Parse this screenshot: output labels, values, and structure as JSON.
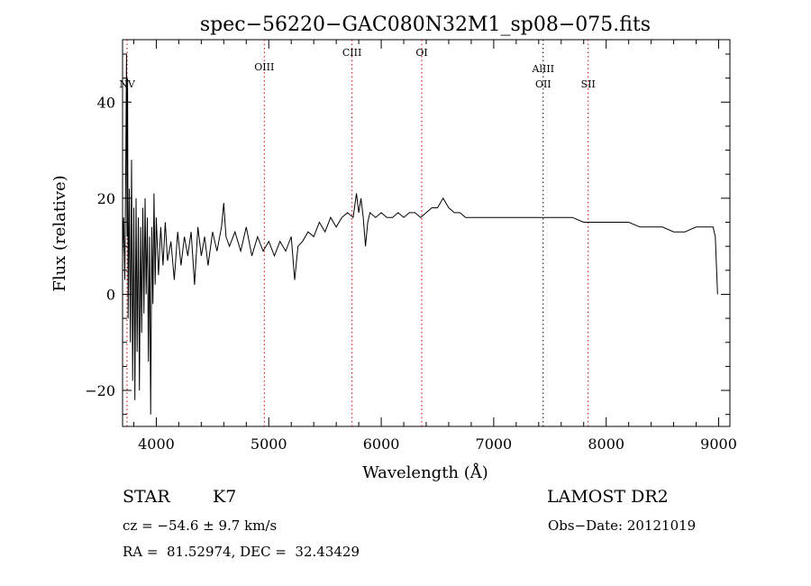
{
  "chart_data": {
    "type": "line",
    "title": "spec−56220−GAC080N32M1_sp08−075.fits",
    "xlabel": "Wavelength (Å)",
    "ylabel": "Flux (relative)",
    "xlim": [
      3700,
      9100
    ],
    "ylim": [
      -27.5,
      53
    ],
    "xticks": [
      4000,
      5000,
      6000,
      7000,
      8000,
      9000
    ],
    "yticks": [
      -20,
      0,
      20,
      40
    ],
    "series": [
      {
        "values": [
          [
            3700,
            8
          ],
          [
            3710,
            16
          ],
          [
            3720,
            3
          ],
          [
            3730,
            30
          ],
          [
            3735,
            50
          ],
          [
            3740,
            12
          ],
          [
            3745,
            45
          ],
          [
            3750,
            -5
          ],
          [
            3760,
            22
          ],
          [
            3770,
            -10
          ],
          [
            3780,
            28
          ],
          [
            3790,
            -18
          ],
          [
            3800,
            18
          ],
          [
            3810,
            -22
          ],
          [
            3820,
            20
          ],
          [
            3830,
            -12
          ],
          [
            3840,
            16
          ],
          [
            3850,
            -20
          ],
          [
            3860,
            14
          ],
          [
            3870,
            -8
          ],
          [
            3880,
            18
          ],
          [
            3890,
            -4
          ],
          [
            3900,
            20
          ],
          [
            3910,
            0
          ],
          [
            3920,
            16
          ],
          [
            3930,
            -14
          ],
          [
            3940,
            12
          ],
          [
            3950,
            -25
          ],
          [
            3960,
            14
          ],
          [
            3970,
            -2
          ],
          [
            3980,
            21
          ],
          [
            3990,
            2
          ],
          [
            4000,
            16
          ],
          [
            4020,
            4
          ],
          [
            4040,
            14
          ],
          [
            4060,
            6
          ],
          [
            4080,
            15
          ],
          [
            4100,
            7
          ],
          [
            4130,
            11
          ],
          [
            4160,
            3
          ],
          [
            4190,
            13
          ],
          [
            4220,
            6
          ],
          [
            4250,
            12
          ],
          [
            4280,
            8
          ],
          [
            4310,
            13
          ],
          [
            4340,
            2
          ],
          [
            4370,
            14
          ],
          [
            4400,
            8
          ],
          [
            4430,
            12
          ],
          [
            4460,
            6
          ],
          [
            4500,
            13
          ],
          [
            4540,
            9
          ],
          [
            4580,
            14
          ],
          [
            4600,
            19
          ],
          [
            4620,
            12
          ],
          [
            4650,
            10
          ],
          [
            4700,
            13
          ],
          [
            4750,
            9
          ],
          [
            4800,
            14
          ],
          [
            4850,
            8
          ],
          [
            4900,
            12
          ],
          [
            4950,
            9
          ],
          [
            5000,
            11
          ],
          [
            5050,
            8
          ],
          [
            5100,
            11
          ],
          [
            5150,
            9
          ],
          [
            5200,
            12
          ],
          [
            5230,
            3
          ],
          [
            5260,
            10
          ],
          [
            5300,
            11
          ],
          [
            5350,
            13
          ],
          [
            5400,
            12
          ],
          [
            5450,
            15
          ],
          [
            5500,
            13
          ],
          [
            5550,
            16
          ],
          [
            5600,
            14
          ],
          [
            5650,
            16
          ],
          [
            5700,
            17
          ],
          [
            5750,
            16
          ],
          [
            5780,
            21
          ],
          [
            5800,
            17
          ],
          [
            5820,
            20
          ],
          [
            5840,
            16
          ],
          [
            5860,
            10
          ],
          [
            5880,
            15
          ],
          [
            5900,
            17
          ],
          [
            5950,
            16
          ],
          [
            6000,
            17
          ],
          [
            6050,
            16
          ],
          [
            6100,
            16
          ],
          [
            6150,
            17
          ],
          [
            6200,
            16
          ],
          [
            6250,
            17
          ],
          [
            6300,
            17
          ],
          [
            6350,
            16
          ],
          [
            6400,
            17
          ],
          [
            6450,
            18
          ],
          [
            6500,
            18
          ],
          [
            6550,
            20
          ],
          [
            6600,
            18
          ],
          [
            6650,
            17
          ],
          [
            6700,
            17
          ],
          [
            6750,
            16
          ],
          [
            6800,
            16
          ],
          [
            6850,
            16
          ],
          [
            6900,
            16
          ],
          [
            6950,
            16
          ],
          [
            7000,
            16
          ],
          [
            7100,
            16
          ],
          [
            7200,
            16
          ],
          [
            7300,
            16
          ],
          [
            7400,
            16
          ],
          [
            7450,
            16
          ],
          [
            7500,
            16
          ],
          [
            7600,
            16
          ],
          [
            7700,
            16
          ],
          [
            7800,
            15
          ],
          [
            7900,
            15
          ],
          [
            8000,
            15
          ],
          [
            8100,
            15
          ],
          [
            8200,
            15
          ],
          [
            8300,
            14
          ],
          [
            8400,
            14
          ],
          [
            8500,
            14
          ],
          [
            8600,
            13
          ],
          [
            8700,
            13
          ],
          [
            8800,
            14
          ],
          [
            8900,
            14
          ],
          [
            8950,
            14
          ],
          [
            8970,
            12
          ],
          [
            8990,
            0
          ]
        ]
      }
    ],
    "lines": [
      {
        "label": "NV",
        "x": 3740,
        "color": "#cc0000"
      },
      {
        "label": "OIII",
        "x": 4960,
        "color": "#cc0000"
      },
      {
        "label": "CIII",
        "x": 5740,
        "color": "#cc0000"
      },
      {
        "label": "OI",
        "x": 6360,
        "color": "#cc0000"
      },
      {
        "label": "AlIII",
        "x": 7440,
        "color": "#000000"
      },
      {
        "label": "OII",
        "x": 7440,
        "color": "#cc0000"
      },
      {
        "label": "SII",
        "x": 7840,
        "color": "#cc0000"
      }
    ]
  },
  "info": {
    "object_class": "STAR",
    "subclass": "K7",
    "survey": "LAMOST DR2",
    "cz": "cz = −54.6 ± 9.7 km/s",
    "obs_date": "Obs−Date: 20121019",
    "radec": "RA =  81.52974, DEC =  32.43429"
  }
}
